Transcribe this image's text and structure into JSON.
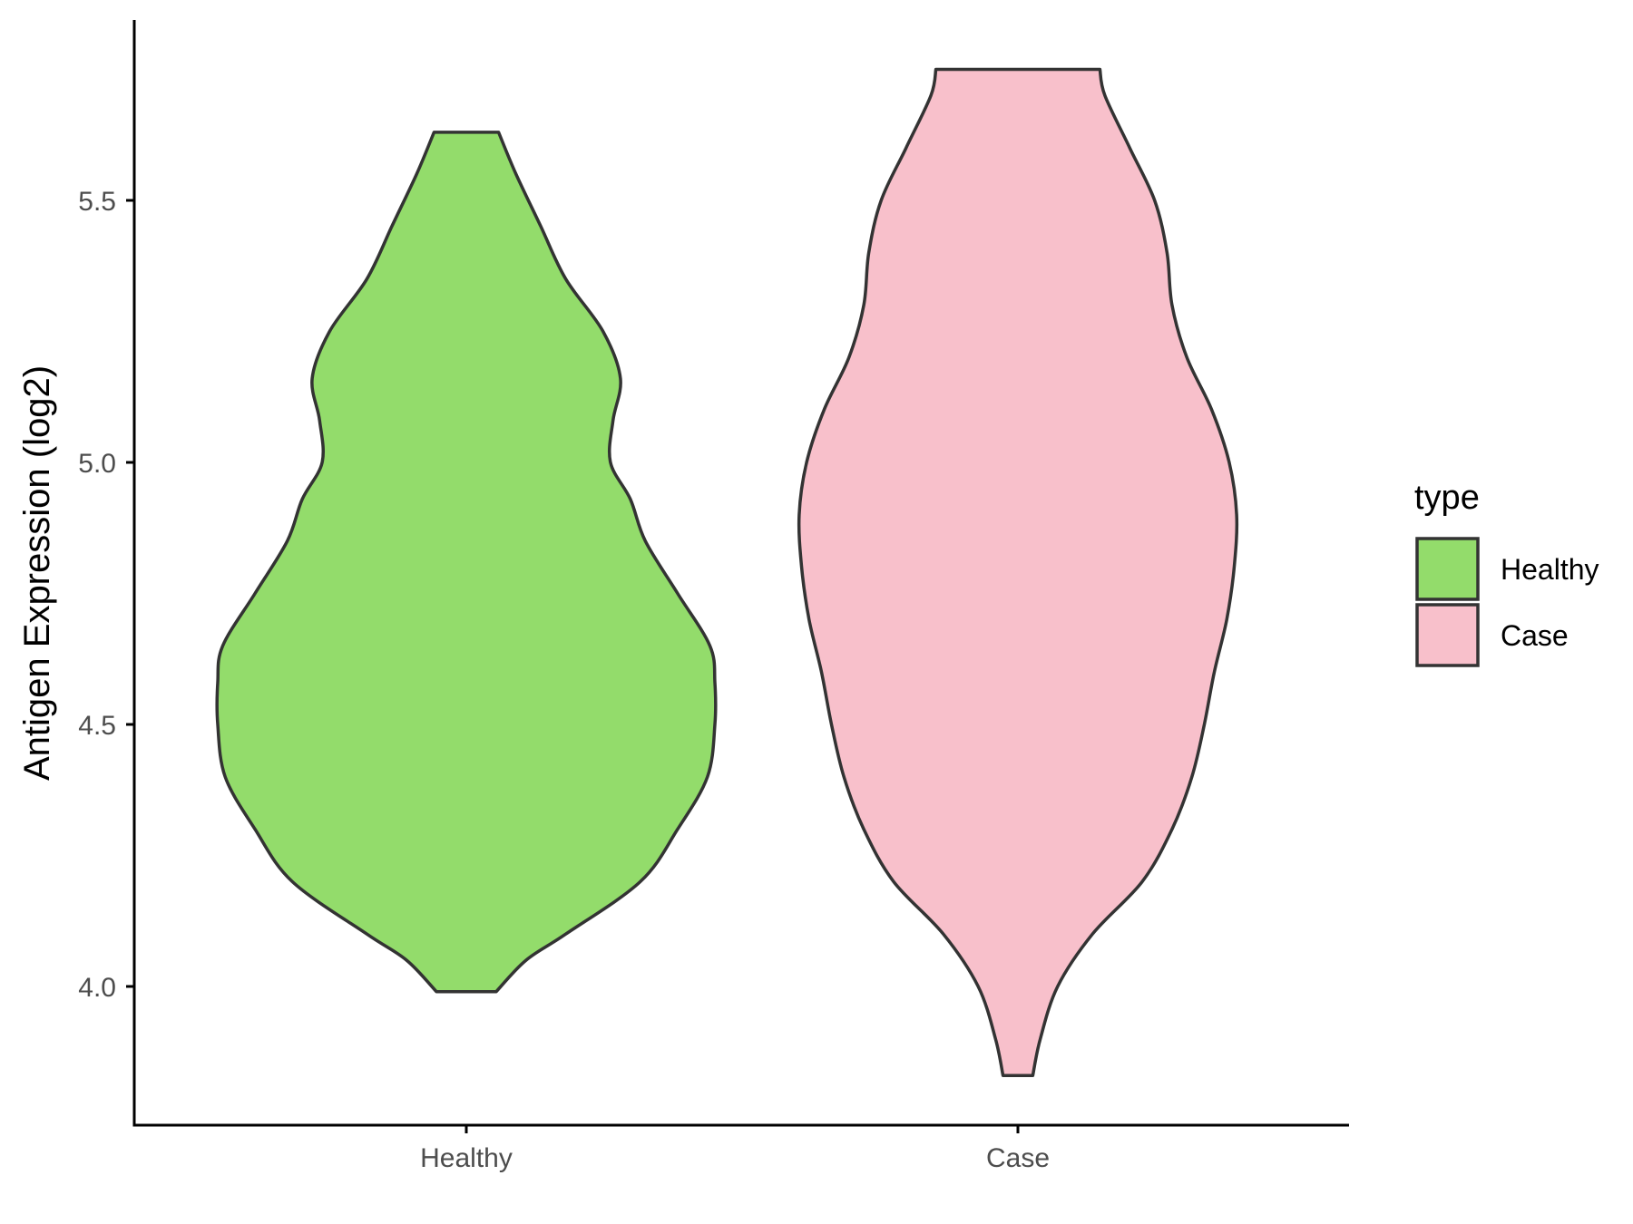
{
  "chart_data": {
    "type": "violin",
    "title": "",
    "xlabel": "",
    "ylabel": "Antigen Expression (log2)",
    "ylim": [
      3.8,
      5.8
    ],
    "y_ticks": [
      "4.0",
      "4.5",
      "5.0",
      "5.5"
    ],
    "categories": [
      "Healthy",
      "Case"
    ],
    "grid": false,
    "legend": {
      "title": "type",
      "position": "right"
    },
    "series": [
      {
        "name": "Healthy",
        "color": "#93dc6b",
        "y_min": 3.99,
        "y_max": 5.63,
        "density_profile": [
          [
            3.99,
            0.12
          ],
          [
            4.05,
            0.24
          ],
          [
            4.1,
            0.4
          ],
          [
            4.2,
            0.7
          ],
          [
            4.3,
            0.85
          ],
          [
            4.4,
            0.97
          ],
          [
            4.5,
            1.0
          ],
          [
            4.58,
            1.0
          ],
          [
            4.65,
            0.98
          ],
          [
            4.75,
            0.85
          ],
          [
            4.85,
            0.72
          ],
          [
            4.93,
            0.66
          ],
          [
            5.0,
            0.58
          ],
          [
            5.08,
            0.59
          ],
          [
            5.16,
            0.62
          ],
          [
            5.25,
            0.55
          ],
          [
            5.35,
            0.4
          ],
          [
            5.45,
            0.3
          ],
          [
            5.55,
            0.2
          ],
          [
            5.63,
            0.13
          ]
        ]
      },
      {
        "name": "Case",
        "color": "#f8c0cb",
        "y_min": 3.83,
        "y_max": 5.75,
        "density_profile": [
          [
            3.83,
            0.06
          ],
          [
            3.9,
            0.09
          ],
          [
            4.0,
            0.16
          ],
          [
            4.1,
            0.3
          ],
          [
            4.2,
            0.5
          ],
          [
            4.3,
            0.62
          ],
          [
            4.4,
            0.7
          ],
          [
            4.5,
            0.75
          ],
          [
            4.6,
            0.79
          ],
          [
            4.7,
            0.84
          ],
          [
            4.8,
            0.87
          ],
          [
            4.9,
            0.88
          ],
          [
            5.0,
            0.85
          ],
          [
            5.1,
            0.78
          ],
          [
            5.2,
            0.68
          ],
          [
            5.3,
            0.62
          ],
          [
            5.4,
            0.6
          ],
          [
            5.5,
            0.55
          ],
          [
            5.6,
            0.45
          ],
          [
            5.7,
            0.35
          ],
          [
            5.75,
            0.33
          ]
        ]
      }
    ]
  }
}
